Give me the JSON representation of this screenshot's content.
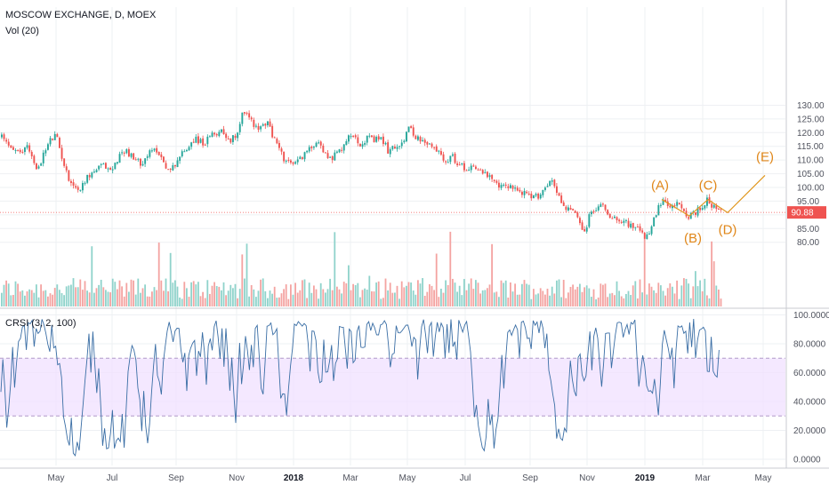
{
  "header": {
    "symbol_title": "MOSCOW EXCHANGE, D, MOEX",
    "volume_label": "Vol (20)",
    "indicator_label": "CRSI (3, 2, 100)"
  },
  "colors": {
    "up": "#26a69a",
    "down": "#ef5350",
    "vol_up": "#8fd3cb",
    "vol_down": "#f4a3a1",
    "wave": "#e0971e",
    "crsi_line": "#3a6ea5",
    "crsi_band": "#f0e0ff",
    "grid": "#eef0f3",
    "price_line": "#ef5350"
  },
  "chart_data": [
    {
      "type": "candlestick",
      "title": "MOSCOW EXCHANGE, D, MOEX",
      "x_tick_labels": [
        "May",
        "Jul",
        "Sep",
        "Nov",
        "2018",
        "Mar",
        "May",
        "Jul",
        "Sep",
        "Nov",
        "2019",
        "Mar",
        "May"
      ],
      "x_tick_bold": [
        false,
        false,
        false,
        false,
        true,
        false,
        false,
        false,
        false,
        false,
        true,
        false,
        false
      ],
      "y_tick_labels": [
        "130.00",
        "125.00",
        "120.00",
        "115.00",
        "110.00",
        "105.00",
        "100.00",
        "95.00",
        "90.00",
        "85.00",
        "80.00"
      ],
      "y_ticks": [
        130,
        125,
        120,
        115,
        110,
        105,
        100,
        95,
        90,
        85,
        80
      ],
      "ylim": [
        78.5,
        130.5
      ],
      "last_price_label": "90.88",
      "last_price": 90.88,
      "close_path": [
        [
          0,
          118.5
        ],
        [
          10,
          115
        ],
        [
          22,
          112
        ],
        [
          30,
          116
        ],
        [
          40,
          106
        ],
        [
          48,
          112
        ],
        [
          55,
          117
        ],
        [
          62,
          119
        ],
        [
          68,
          112
        ],
        [
          75,
          104
        ],
        [
          82,
          101
        ],
        [
          88,
          98.5
        ],
        [
          95,
          103
        ],
        [
          105,
          106
        ],
        [
          115,
          108
        ],
        [
          125,
          106
        ],
        [
          132,
          111
        ],
        [
          140,
          114
        ],
        [
          150,
          110
        ],
        [
          158,
          109
        ],
        [
          165,
          112
        ],
        [
          175,
          114
        ],
        [
          182,
          110
        ],
        [
          190,
          105.5
        ],
        [
          198,
          110
        ],
        [
          208,
          114
        ],
        [
          218,
          118
        ],
        [
          228,
          116
        ],
        [
          238,
          119
        ],
        [
          248,
          121
        ],
        [
          258,
          117
        ],
        [
          266,
          120
        ],
        [
          272,
          128.5
        ],
        [
          280,
          125
        ],
        [
          290,
          121
        ],
        [
          300,
          124
        ],
        [
          306,
          118
        ],
        [
          312,
          116
        ],
        [
          318,
          110
        ],
        [
          325,
          108.5
        ],
        [
          333,
          109
        ],
        [
          340,
          112
        ],
        [
          348,
          114
        ],
        [
          356,
          118
        ],
        [
          364,
          112
        ],
        [
          372,
          111
        ],
        [
          380,
          113
        ],
        [
          388,
          117
        ],
        [
          396,
          120
        ],
        [
          404,
          116
        ],
        [
          412,
          118
        ],
        [
          420,
          117
        ],
        [
          428,
          118
        ],
        [
          436,
          113
        ],
        [
          444,
          115
        ],
        [
          452,
          117
        ],
        [
          460,
          122
        ],
        [
          468,
          118
        ],
        [
          476,
          116
        ],
        [
          484,
          115
        ],
        [
          492,
          113
        ],
        [
          500,
          110
        ],
        [
          508,
          111
        ],
        [
          516,
          108
        ],
        [
          524,
          107
        ],
        [
          532,
          108
        ],
        [
          540,
          106
        ],
        [
          548,
          104
        ],
        [
          556,
          101
        ],
        [
          564,
          100
        ],
        [
          572,
          101
        ],
        [
          580,
          99
        ],
        [
          588,
          98
        ],
        [
          596,
          96
        ],
        [
          604,
          97
        ],
        [
          612,
          100
        ],
        [
          620,
          103
        ],
        [
          626,
          98
        ],
        [
          632,
          93
        ],
        [
          640,
          92
        ],
        [
          648,
          89
        ],
        [
          656,
          83
        ],
        [
          662,
          90
        ],
        [
          668,
          92
        ],
        [
          676,
          94
        ],
        [
          684,
          90
        ],
        [
          692,
          89
        ],
        [
          700,
          88
        ],
        [
          708,
          86
        ],
        [
          716,
          85
        ],
        [
          724,
          81
        ],
        [
          732,
          86
        ],
        [
          740,
          93
        ],
        [
          746,
          95
        ],
        [
          752,
          92
        ],
        [
          758,
          94
        ],
        [
          764,
          93
        ],
        [
          770,
          90
        ],
        [
          776,
          89.5
        ],
        [
          782,
          91
        ],
        [
          788,
          93
        ],
        [
          794,
          95.5
        ],
        [
          800,
          93
        ],
        [
          806,
          91.5
        ],
        [
          812,
          90.9
        ]
      ],
      "waves": [
        {
          "label": "(A)",
          "time_x": 744,
          "price": 95.6
        },
        {
          "label": "(B)",
          "time_x": 775,
          "price": 89.6
        },
        {
          "label": "(C)",
          "time_x": 796,
          "price": 95.6
        },
        {
          "label": "(D)",
          "time_x": 818,
          "price": 90.8
        },
        {
          "label": "(E)",
          "time_x": 860,
          "price": 107
        }
      ]
    },
    {
      "type": "bar",
      "title": "Vol (20)",
      "note": "volume histogram at the bottom of the price pane"
    },
    {
      "type": "line",
      "title": "CRSI (3, 2, 100)",
      "y_tick_labels": [
        "100.0000",
        "80.0000",
        "60.0000",
        "40.0000",
        "20.0000",
        "0.0000"
      ],
      "y_ticks": [
        100,
        80,
        60,
        40,
        20,
        0
      ],
      "ylim": [
        -2,
        102
      ],
      "band": [
        30,
        70
      ]
    }
  ]
}
